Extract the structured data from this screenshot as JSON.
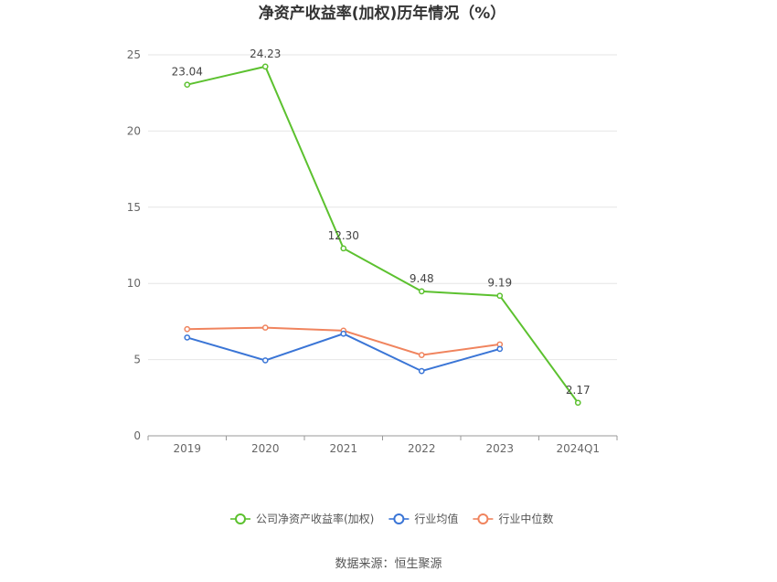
{
  "chart_data": {
    "type": "line",
    "title": "净资产收益率(加权)历年情况（%）",
    "categories": [
      "2019",
      "2020",
      "2021",
      "2022",
      "2023",
      "2024Q1"
    ],
    "ylim": [
      0,
      25
    ],
    "yticks": [
      0,
      5,
      10,
      15,
      20,
      25
    ],
    "grid": true,
    "legend_position": "bottom",
    "series": [
      {
        "name": "公司净资产收益率(加权)",
        "color": "#5cc12f",
        "values": [
          23.04,
          24.23,
          12.3,
          9.48,
          9.19,
          2.17
        ],
        "labels": [
          "23.04",
          "24.23",
          "12.30",
          "9.48",
          "9.19",
          "2.17"
        ]
      },
      {
        "name": "行业均值",
        "color": "#3a75d6",
        "values": [
          6.45,
          4.95,
          6.7,
          4.25,
          5.7,
          null
        ]
      },
      {
        "name": "行业中位数",
        "color": "#f0845e",
        "values": [
          7.0,
          7.1,
          6.9,
          5.3,
          6.0,
          null
        ]
      }
    ]
  },
  "footer": {
    "source": "数据来源：恒生聚源"
  }
}
